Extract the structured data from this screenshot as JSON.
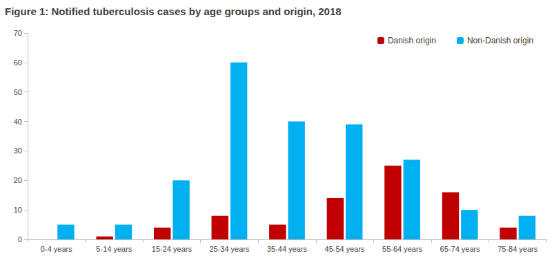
{
  "chart_data": {
    "type": "bar",
    "title": "Figure 1: Notified tuberculosis cases by age groups and origin, 2018",
    "categories": [
      "0-4 years",
      "5-14 years",
      "15-24 years",
      "25-34 years",
      "35-44 years",
      "45-54 years",
      "55-64 years",
      "65-74 years",
      "75-84 years"
    ],
    "series": [
      {
        "name": "Danish origin",
        "color": "#c00000",
        "values": [
          0,
          1,
          4,
          8,
          5,
          14,
          25,
          16,
          4
        ]
      },
      {
        "name": "Non-Danish origin",
        "color": "#00b0f0",
        "values": [
          5,
          5,
          20,
          60,
          40,
          39,
          27,
          10,
          8
        ]
      }
    ],
    "ylim": [
      0,
      70
    ],
    "yticks": [
      0,
      10,
      20,
      30,
      40,
      50,
      60,
      70
    ],
    "grid": false,
    "legend": "upper right"
  }
}
